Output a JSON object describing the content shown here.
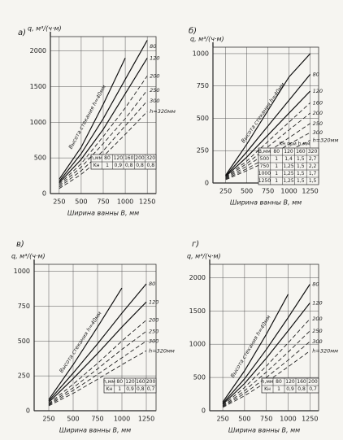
{
  "chart_data": [
    {
      "type": "line",
      "title": "а)",
      "y_label": "q, м³/(ч·м)",
      "x_label": "Ширина ванны B, мм",
      "x": [
        250,
        500,
        750,
        1000,
        1250
      ],
      "xlim": [
        150,
        1350
      ],
      "xticks": [
        250,
        500,
        750,
        1000,
        1250
      ],
      "ylim": [
        0,
        2200
      ],
      "yticks": [
        0,
        500,
        1000,
        1500,
        2000
      ],
      "grid": true,
      "series": [
        {
          "name": "Высота стекания h=40мм",
          "color": "#111",
          "style": "solid",
          "values": [
            200,
            650,
            1250,
            1900,
            null
          ]
        },
        {
          "name": "80",
          "color": "#111",
          "style": "solid",
          "values": [
            170,
            560,
            1050,
            1600,
            2150
          ]
        },
        {
          "name": "120",
          "color": "#111",
          "style": "solid",
          "values": [
            150,
            480,
            900,
            1400,
            1900
          ]
        },
        {
          "name": "200",
          "color": "#222",
          "style": "dashed",
          "values": [
            130,
            420,
            800,
            1200,
            1650
          ]
        },
        {
          "name": "250",
          "color": "#222",
          "style": "dashed",
          "values": [
            110,
            370,
            700,
            1050,
            1450
          ]
        },
        {
          "name": "300",
          "color": "#222",
          "style": "dashed",
          "values": [
            90,
            320,
            600,
            950,
            1300
          ]
        },
        {
          "name": "h=320мм",
          "color": "#222",
          "style": "dashed",
          "values": [
            70,
            270,
            520,
            830,
            1150
          ]
        }
      ],
      "table": {
        "rows": [
          [
            "h,мм",
            "80",
            "120",
            "160",
            "200",
            "320"
          ],
          [
            "Kн",
            "1",
            "0,9",
            "0,8",
            "0,8",
            "0,8"
          ]
        ]
      }
    },
    {
      "type": "line",
      "title": "б)",
      "y_label": "q, м³/(ч·м)",
      "x_label": "Ширина ванны B, мм",
      "x": [
        250,
        500,
        750,
        1000,
        1250
      ],
      "xlim": [
        100,
        1350
      ],
      "xticks": [
        250,
        500,
        750,
        1000,
        1250
      ],
      "ylim": [
        0,
        1050
      ],
      "yticks": [
        0,
        250,
        500,
        750,
        1000
      ],
      "grid": true,
      "series": [
        {
          "name": "Высота стекания h=40мм",
          "color": "#111",
          "style": "solid",
          "values": [
            60,
            300,
            560,
            820,
            1000
          ]
        },
        {
          "name": "80",
          "color": "#111",
          "style": "solid",
          "values": [
            55,
            240,
            440,
            640,
            840
          ]
        },
        {
          "name": "120",
          "color": "#111",
          "style": "solid",
          "values": [
            50,
            200,
            370,
            540,
            710
          ]
        },
        {
          "name": "160",
          "color": "#222",
          "style": "dashed",
          "values": [
            45,
            170,
            320,
            470,
            620
          ]
        },
        {
          "name": "200",
          "color": "#222",
          "style": "dashed",
          "values": [
            40,
            150,
            280,
            410,
            540
          ]
        },
        {
          "name": "250",
          "color": "#222",
          "style": "dashed",
          "values": [
            35,
            130,
            240,
            350,
            460
          ]
        },
        {
          "name": "300",
          "color": "#222",
          "style": "dashed",
          "values": [
            30,
            110,
            200,
            300,
            390
          ]
        },
        {
          "name": "h=320мм",
          "color": "#222",
          "style": "dashed",
          "values": [
            25,
            95,
            170,
            250,
            330
          ]
        }
      ],
      "table": {
        "caption": "Kн при h,мм",
        "rows": [
          [
            "B,мм",
            "80",
            "120",
            "160",
            "320"
          ],
          [
            "500",
            "1",
            "1,4",
            "1,5",
            "2,7"
          ],
          [
            "750",
            "1",
            "1,25",
            "1,5",
            "2,2"
          ],
          [
            "1000",
            "1",
            "1,25",
            "1,5",
            "1,7"
          ],
          [
            "1250",
            "1",
            "1,25",
            "1,5",
            "1,5"
          ]
        ]
      }
    },
    {
      "type": "line",
      "title": "в)",
      "y_label": "q, м³/(ч·м)",
      "x_label": "Ширина ванны B, мм",
      "x": [
        250,
        500,
        750,
        1000,
        1250
      ],
      "xlim": [
        100,
        1350
      ],
      "xticks": [
        250,
        500,
        750,
        1000,
        1250
      ],
      "ylim": [
        0,
        1050
      ],
      "yticks": [
        0,
        250,
        500,
        750,
        1000
      ],
      "grid": true,
      "series": [
        {
          "name": "Высота стекания h=40мм",
          "color": "#111",
          "style": "solid",
          "values": [
            80,
            330,
            600,
            880,
            null
          ]
        },
        {
          "name": "80",
          "color": "#111",
          "style": "solid",
          "values": [
            70,
            270,
            480,
            700,
            910
          ]
        },
        {
          "name": "120",
          "color": "#111",
          "style": "solid",
          "values": [
            60,
            230,
            410,
            600,
            780
          ]
        },
        {
          "name": "200",
          "color": "#222",
          "style": "dashed",
          "values": [
            50,
            190,
            340,
            500,
            650
          ]
        },
        {
          "name": "250",
          "color": "#222",
          "style": "dashed",
          "values": [
            45,
            165,
            300,
            440,
            570
          ]
        },
        {
          "name": "300",
          "color": "#222",
          "style": "dashed",
          "values": [
            40,
            145,
            260,
            380,
            500
          ]
        },
        {
          "name": "h=320мм",
          "color": "#222",
          "style": "dashed",
          "values": [
            35,
            125,
            225,
            330,
            430
          ]
        }
      ],
      "table": {
        "rows": [
          [
            "h,мм",
            "80",
            "120",
            "160",
            "200"
          ],
          [
            "Kн",
            "1",
            "0,9",
            "0,8",
            "0,7"
          ]
        ]
      }
    },
    {
      "type": "line",
      "title": "г)",
      "y_label": "q, м³/(ч·м)",
      "x_label": "Ширина ванны B, мм",
      "x": [
        250,
        500,
        750,
        1000,
        1250
      ],
      "xlim": [
        100,
        1350
      ],
      "xticks": [
        250,
        500,
        750,
        1000,
        1250
      ],
      "ylim": [
        0,
        2200
      ],
      "yticks": [
        0,
        500,
        1000,
        1500,
        2000
      ],
      "grid": true,
      "series": [
        {
          "name": "Высота стекания h=40мм",
          "color": "#111",
          "style": "solid",
          "values": [
            130,
            600,
            1150,
            1750,
            null
          ]
        },
        {
          "name": "80",
          "color": "#111",
          "style": "solid",
          "values": [
            110,
            480,
            920,
            1400,
            1900
          ]
        },
        {
          "name": "120",
          "color": "#111",
          "style": "solid",
          "values": [
            95,
            410,
            790,
            1200,
            1620
          ]
        },
        {
          "name": "200",
          "color": "#222",
          "style": "dashed",
          "values": [
            80,
            350,
            670,
            1020,
            1380
          ]
        },
        {
          "name": "250",
          "color": "#222",
          "style": "dashed",
          "values": [
            70,
            300,
            580,
            880,
            1200
          ]
        },
        {
          "name": "300",
          "color": "#222",
          "style": "dashed",
          "values": [
            60,
            260,
            500,
            760,
            1040
          ]
        },
        {
          "name": "h=320мм",
          "color": "#222",
          "style": "dashed",
          "values": [
            50,
            225,
            430,
            660,
            900
          ]
        }
      ],
      "table": {
        "rows": [
          [
            "h,мм",
            "80",
            "120",
            "160",
            "200"
          ],
          [
            "Kн",
            "1",
            "0,9",
            "0,8",
            "0,7"
          ]
        ]
      }
    }
  ]
}
